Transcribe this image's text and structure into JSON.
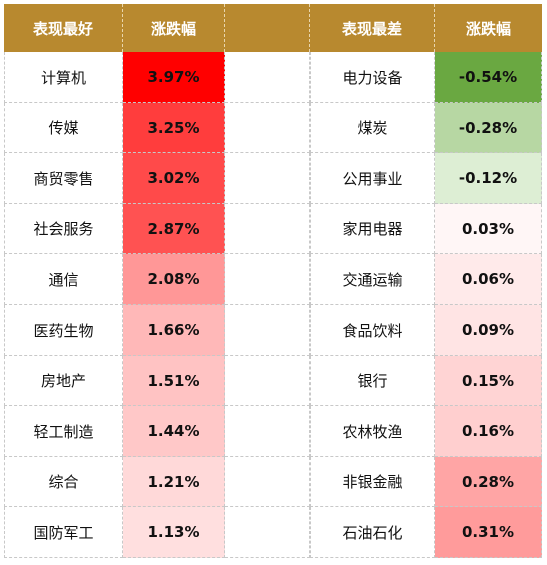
{
  "headers": {
    "best_label": "表现最好",
    "best_change": "涨跌幅",
    "worst_label": "表现最差",
    "worst_change": "涨跌幅"
  },
  "best": [
    {
      "name": "计算机",
      "change": "3.97%",
      "color": "#ff0000"
    },
    {
      "name": "传媒",
      "change": "3.25%",
      "color": "#ff3d3d"
    },
    {
      "name": "商贸零售",
      "change": "3.02%",
      "color": "#ff4a4a"
    },
    {
      "name": "社会服务",
      "change": "2.87%",
      "color": "#ff5252"
    },
    {
      "name": "通信",
      "change": "2.08%",
      "color": "#ff9797"
    },
    {
      "name": "医药生物",
      "change": "1.66%",
      "color": "#ffb8b8"
    },
    {
      "name": "房地产",
      "change": "1.51%",
      "color": "#ffc3c3"
    },
    {
      "name": "轻工制造",
      "change": "1.44%",
      "color": "#ffc8c8"
    },
    {
      "name": "综合",
      "change": "1.21%",
      "color": "#ffd9d9"
    },
    {
      "name": "国防军工",
      "change": "1.13%",
      "color": "#ffdfdf"
    }
  ],
  "worst": [
    {
      "name": "电力设备",
      "change": "-0.54%",
      "color": "#6aa841"
    },
    {
      "name": "煤炭",
      "change": "-0.28%",
      "color": "#b7d7a3"
    },
    {
      "name": "公用事业",
      "change": "-0.12%",
      "color": "#ddeed4"
    },
    {
      "name": "家用电器",
      "change": "0.03%",
      "color": "#fff6f6"
    },
    {
      "name": "交通运输",
      "change": "0.06%",
      "color": "#ffeaea"
    },
    {
      "name": "食品饮料",
      "change": "0.09%",
      "color": "#ffe4e4"
    },
    {
      "name": "银行",
      "change": "0.15%",
      "color": "#ffd4d4"
    },
    {
      "name": "农林牧渔",
      "change": "0.16%",
      "color": "#ffcfcf"
    },
    {
      "name": "非银金融",
      "change": "0.28%",
      "color": "#ffa5a5"
    },
    {
      "name": "石油石化",
      "change": "0.31%",
      "color": "#ff9b9b"
    }
  ],
  "colors": {
    "header_bg": "#b8892f",
    "header_text": "#ffffff"
  }
}
